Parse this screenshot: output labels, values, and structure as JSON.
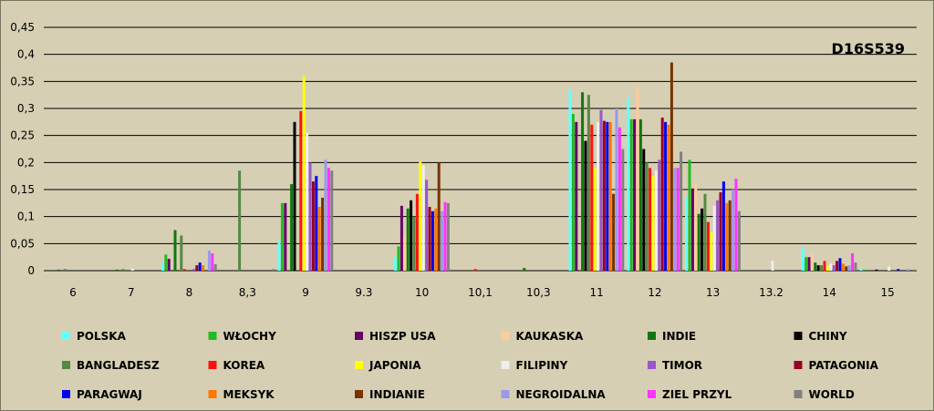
{
  "chart_data": {
    "type": "bar",
    "title": "D16S539",
    "ylim": [
      0,
      0.45
    ],
    "yticks": [
      "0",
      "0,05",
      "0,1",
      "0,15",
      "0,2",
      "0,25",
      "0,3",
      "0,35",
      "0,4",
      "0,45"
    ],
    "grid": true,
    "legend_position": "bottom",
    "categories": [
      "6",
      "7",
      "8",
      "8,3",
      "9",
      "9.3",
      "10",
      "10,1",
      "10,3",
      "11",
      "12",
      "13",
      "13.2",
      "14",
      "15"
    ],
    "series": [
      {
        "name": "POLSKA",
        "color": "#66ffff",
        "values": [
          0,
          0,
          0.015,
          0,
          0.055,
          0,
          0.025,
          0,
          0,
          0.335,
          0.32,
          0.135,
          0,
          0.042,
          0.003
        ]
      },
      {
        "name": "WŁOCHY",
        "color": "#22bb22",
        "values": [
          0,
          0,
          0.03,
          0,
          0.125,
          0,
          0.045,
          0,
          0,
          0.29,
          0.28,
          0.205,
          0,
          0.025,
          0.002
        ]
      },
      {
        "name": "HISZP USA",
        "color": "#660066",
        "values": [
          0,
          0,
          0.022,
          0,
          0.125,
          0,
          0.12,
          0,
          0,
          0.275,
          0.28,
          0.152,
          0,
          0.025,
          0
        ]
      },
      {
        "name": "KAUKASKA",
        "color": "#ffcc99",
        "values": [
          0,
          0,
          0,
          0,
          0,
          0,
          0.065,
          0,
          0,
          0,
          0.34,
          0.162,
          0,
          0.032,
          0
        ]
      },
      {
        "name": "INDIE",
        "color": "#117711",
        "values": [
          0.002,
          0.002,
          0.075,
          0,
          0.16,
          0,
          0.115,
          0,
          0.005,
          0.33,
          0.28,
          0.105,
          0,
          0.015,
          0
        ]
      },
      {
        "name": "CHINY",
        "color": "#000000",
        "values": [
          0,
          0,
          0,
          0,
          0.275,
          0,
          0.13,
          0,
          0,
          0.24,
          0.225,
          0.115,
          0,
          0.01,
          0.002
        ]
      },
      {
        "name": "BANGLADESZ",
        "color": "#558844",
        "values": [
          0.003,
          0.003,
          0.065,
          0.185,
          0,
          0,
          0.1,
          0,
          0,
          0.325,
          0.2,
          0.142,
          0,
          0.01,
          0
        ]
      },
      {
        "name": "KOREA",
        "color": "#ff1111",
        "values": [
          0,
          0,
          0.003,
          0,
          0.295,
          0,
          0.142,
          0.003,
          0,
          0.27,
          0.19,
          0.09,
          0,
          0.018,
          0
        ]
      },
      {
        "name": "JAPONIA",
        "color": "#ffff00",
        "values": [
          0,
          0,
          0,
          0,
          0.36,
          0,
          0.202,
          0,
          0,
          0.19,
          0.175,
          0.072,
          0,
          0.008,
          0
        ]
      },
      {
        "name": "FILIPINY",
        "color": "#eeeeee",
        "values": [
          0,
          0.004,
          0,
          0,
          0.255,
          0,
          0.195,
          0,
          0,
          0.275,
          0.185,
          0.12,
          0.018,
          0.013,
          0.008
        ]
      },
      {
        "name": "TIMOR",
        "color": "#9955cc",
        "values": [
          0,
          0,
          0.003,
          0,
          0.2,
          0,
          0.168,
          0,
          0,
          0.297,
          0.205,
          0.13,
          0,
          0.01,
          0
        ]
      },
      {
        "name": "PATAGONIA",
        "color": "#990022",
        "values": [
          0,
          0,
          0.01,
          0,
          0.165,
          0,
          0.118,
          0,
          0,
          0.277,
          0.283,
          0.145,
          0,
          0.018,
          0
        ]
      },
      {
        "name": "PARAGWAJ",
        "color": "#0000ee",
        "values": [
          0,
          0,
          0.015,
          0,
          0.175,
          0,
          0.11,
          0,
          0,
          0.275,
          0.275,
          0.165,
          0,
          0.023,
          0.003
        ]
      },
      {
        "name": "MEKSYK",
        "color": "#ff7700",
        "values": [
          0,
          0,
          0.01,
          0,
          0.118,
          0,
          0.115,
          0,
          0,
          0.275,
          0.27,
          0.125,
          0,
          0.013,
          0
        ]
      },
      {
        "name": "INDIANIE",
        "color": "#773300",
        "values": [
          0,
          0,
          0,
          0,
          0.135,
          0,
          0.2,
          0,
          0,
          0.142,
          0.385,
          0.13,
          0,
          0.008,
          0
        ]
      },
      {
        "name": "NEGROIDALNA",
        "color": "#9999ee",
        "values": [
          0,
          0,
          0.037,
          0,
          0.205,
          0,
          0.11,
          0,
          0,
          0.3,
          0.19,
          0.15,
          0,
          0.01,
          0.003
        ]
      },
      {
        "name": "ZIEL PRZYL",
        "color": "#ff33ff",
        "values": [
          0,
          0,
          0.032,
          0,
          0.19,
          0,
          0.127,
          0,
          0,
          0.265,
          0.19,
          0.17,
          0,
          0.032,
          0
        ]
      },
      {
        "name": "WORLD",
        "color": "#808080",
        "values": [
          0,
          0,
          0.012,
          0.003,
          0.185,
          0,
          0.125,
          0,
          0,
          0.225,
          0.22,
          0.11,
          0,
          0.015,
          0.002
        ]
      }
    ]
  }
}
